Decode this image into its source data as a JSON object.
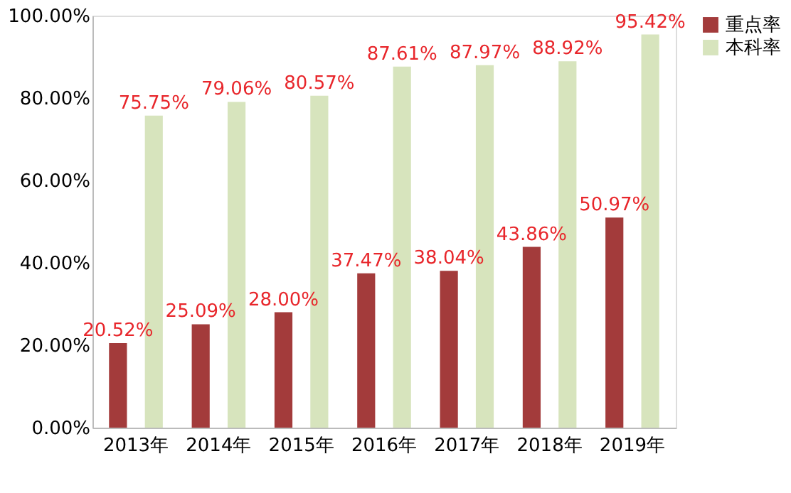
{
  "chart_data": {
    "type": "bar",
    "categories": [
      "2013年",
      "2014年",
      "2015年",
      "2016年",
      "2017年",
      "2018年",
      "2019年"
    ],
    "series": [
      {
        "name": "重点率",
        "color": "#a33b3b",
        "values": [
          20.52,
          25.09,
          28.0,
          37.47,
          38.04,
          43.86,
          50.97
        ],
        "value_labels": [
          "20.52%",
          "25.09%",
          "28.00%",
          "37.47%",
          "38.04%",
          "43.86%",
          "50.97%"
        ]
      },
      {
        "name": "本科率",
        "color": "#d7e4bd",
        "values": [
          75.75,
          79.06,
          80.57,
          87.61,
          87.97,
          88.92,
          95.42
        ],
        "value_labels": [
          "75.75%",
          "79.06%",
          "80.57%",
          "87.61%",
          "87.97%",
          "88.92%",
          "95.42%"
        ]
      }
    ],
    "ylim": [
      0,
      100
    ],
    "yticks": [
      {
        "value": 0,
        "label": "0.00%"
      },
      {
        "value": 20,
        "label": "20.00%"
      },
      {
        "value": 40,
        "label": "40.00%"
      },
      {
        "value": 60,
        "label": "60.00%"
      },
      {
        "value": 80,
        "label": "80.00%"
      },
      {
        "value": 100,
        "label": "100.00%"
      }
    ],
    "grid": false,
    "legend": "right"
  }
}
